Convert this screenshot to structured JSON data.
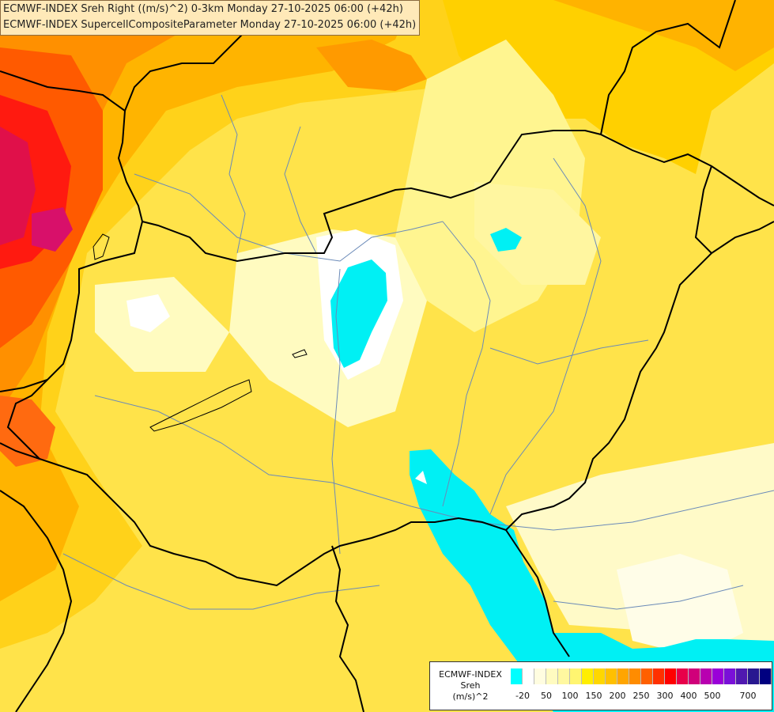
{
  "titles": {
    "line1": "ECMWF-INDEX Sreh Right ((m/s)^2) 0-3km Monday 27-10-2025 06:00 (+42h)",
    "line2": "ECMWF-INDEX SupercellCompositeParameter Monday 27-10-2025 06:00 (+42h)"
  },
  "legend": {
    "title_line1": "ECMWF-INDEX",
    "title_line2": "Sreh",
    "title_line3": "(m/s)^2",
    "colors": [
      "#00ffff",
      "#ffffff",
      "#fffde0",
      "#fffbc0",
      "#fff8a0",
      "#fff570",
      "#ffee00",
      "#ffd700",
      "#ffc000",
      "#ffa500",
      "#ff8c00",
      "#ff6000",
      "#ff3000",
      "#ff0000",
      "#e8004a",
      "#d0007a",
      "#b800b0",
      "#9a00d8",
      "#7a10d8",
      "#5018b0",
      "#281890",
      "#000080"
    ],
    "ticks": [
      "-20",
      "50",
      "100",
      "150",
      "200",
      "250",
      "300",
      "400",
      "500",
      "700"
    ]
  },
  "colors": {
    "background": "#ffe34a",
    "border_line": "#000000",
    "river_line": "#6a8ab8",
    "cyan_zone": "#00f0f4"
  },
  "map_features": [
    "country-borders",
    "rivers",
    "lakes",
    "sreh-shading"
  ]
}
